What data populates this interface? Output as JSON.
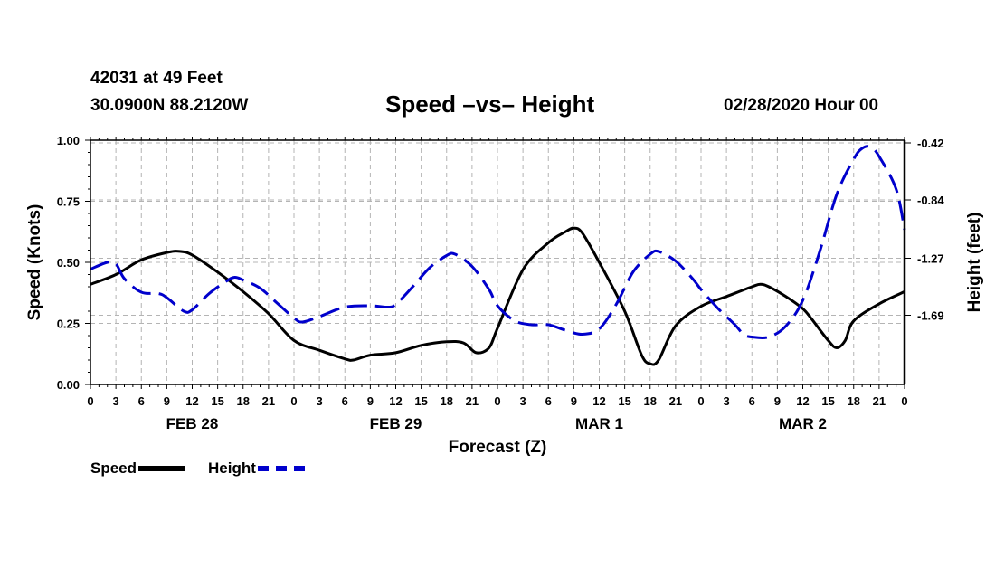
{
  "header": {
    "station": "42031 at 49 Feet",
    "coords": "30.0900N 88.2120W",
    "title": "Speed –vs– Height",
    "run": "02/28/2020 Hour 00"
  },
  "chart_data": {
    "type": "line",
    "title": "Speed –vs– Height",
    "xlabel": "Forecast (Z)",
    "ylabel_left": "Speed (Knots)",
    "ylabel_right": "Height (feet)",
    "x_unit": "forecast hour",
    "xlim": [
      0,
      96
    ],
    "ylim_left": [
      0,
      1.0
    ],
    "ylim_right": [
      -2.2,
      -0.4
    ],
    "yticks_left": [
      "0.00",
      "0.25",
      "0.50",
      "0.75",
      "1.00"
    ],
    "yticks_left_values": [
      0,
      0.25,
      0.5,
      0.75,
      1.0
    ],
    "yticks_right": [
      "-0.42",
      "-0.84",
      "-1.27",
      "-1.69"
    ],
    "yticks_right_values": [
      -0.42,
      -0.84,
      -1.27,
      -1.69
    ],
    "xtick_labels": [
      "0",
      "3",
      "6",
      "9",
      "12",
      "15",
      "18",
      "21",
      "0",
      "3",
      "6",
      "9",
      "12",
      "15",
      "18",
      "21",
      "0",
      "3",
      "6",
      "9",
      "12",
      "15",
      "18",
      "21",
      "0",
      "3",
      "6",
      "9",
      "12",
      "15",
      "18",
      "21",
      "0"
    ],
    "day_labels": [
      {
        "label": "FEB 28",
        "x": 12
      },
      {
        "label": "FEB 29",
        "x": 36
      },
      {
        "label": "MAR 1",
        "x": 60
      },
      {
        "label": "MAR 2",
        "x": 84
      }
    ],
    "grid": true,
    "legend_position": "bottom-left",
    "series": [
      {
        "name": "Speed",
        "axis": "left",
        "color": "#000000",
        "style": "solid",
        "points": [
          [
            0,
            0.41
          ],
          [
            3,
            0.45
          ],
          [
            6,
            0.51
          ],
          [
            9,
            0.54
          ],
          [
            10.5,
            0.545
          ],
          [
            12,
            0.53
          ],
          [
            15,
            0.46
          ],
          [
            18,
            0.38
          ],
          [
            21,
            0.29
          ],
          [
            24,
            0.18
          ],
          [
            27,
            0.14
          ],
          [
            30,
            0.105
          ],
          [
            31,
            0.1
          ],
          [
            33,
            0.12
          ],
          [
            36,
            0.13
          ],
          [
            39,
            0.16
          ],
          [
            42,
            0.175
          ],
          [
            44,
            0.17
          ],
          [
            45.5,
            0.13
          ],
          [
            47,
            0.15
          ],
          [
            48,
            0.23
          ],
          [
            51,
            0.47
          ],
          [
            54,
            0.58
          ],
          [
            56,
            0.625
          ],
          [
            57,
            0.64
          ],
          [
            58,
            0.62
          ],
          [
            60,
            0.5
          ],
          [
            63,
            0.3
          ],
          [
            65,
            0.12
          ],
          [
            66,
            0.085
          ],
          [
            67,
            0.1
          ],
          [
            69,
            0.24
          ],
          [
            72,
            0.32
          ],
          [
            75,
            0.36
          ],
          [
            78,
            0.4
          ],
          [
            79,
            0.41
          ],
          [
            80,
            0.4
          ],
          [
            82,
            0.36
          ],
          [
            84,
            0.31
          ],
          [
            85,
            0.27
          ],
          [
            87,
            0.18
          ],
          [
            88,
            0.15
          ],
          [
            89,
            0.18
          ],
          [
            90,
            0.26
          ],
          [
            93,
            0.33
          ],
          [
            96,
            0.38
          ]
        ]
      },
      {
        "name": "Height",
        "axis": "right",
        "color": "#0000cc",
        "style": "dashed",
        "points": [
          [
            0,
            -1.35
          ],
          [
            2,
            -1.3
          ],
          [
            3,
            -1.31
          ],
          [
            4,
            -1.42
          ],
          [
            6,
            -1.52
          ],
          [
            8,
            -1.53
          ],
          [
            9,
            -1.56
          ],
          [
            11,
            -1.66
          ],
          [
            12,
            -1.65
          ],
          [
            14,
            -1.53
          ],
          [
            16,
            -1.44
          ],
          [
            17,
            -1.41
          ],
          [
            18,
            -1.43
          ],
          [
            20,
            -1.49
          ],
          [
            22,
            -1.6
          ],
          [
            24,
            -1.71
          ],
          [
            25,
            -1.74
          ],
          [
            27,
            -1.7
          ],
          [
            30,
            -1.63
          ],
          [
            33,
            -1.62
          ],
          [
            35,
            -1.63
          ],
          [
            36,
            -1.61
          ],
          [
            38,
            -1.48
          ],
          [
            40,
            -1.34
          ],
          [
            42,
            -1.25
          ],
          [
            43,
            -1.24
          ],
          [
            45,
            -1.33
          ],
          [
            47,
            -1.5
          ],
          [
            48,
            -1.62
          ],
          [
            50,
            -1.73
          ],
          [
            52,
            -1.76
          ],
          [
            54,
            -1.76
          ],
          [
            56,
            -1.8
          ],
          [
            58,
            -1.83
          ],
          [
            60,
            -1.79
          ],
          [
            62,
            -1.61
          ],
          [
            64,
            -1.37
          ],
          [
            66,
            -1.24
          ],
          [
            67,
            -1.22
          ],
          [
            69,
            -1.29
          ],
          [
            71,
            -1.42
          ],
          [
            72,
            -1.5
          ],
          [
            74,
            -1.64
          ],
          [
            76,
            -1.76
          ],
          [
            77,
            -1.83
          ],
          [
            78,
            -1.85
          ],
          [
            80,
            -1.85
          ],
          [
            82,
            -1.77
          ],
          [
            84,
            -1.58
          ],
          [
            86,
            -1.22
          ],
          [
            88,
            -0.8
          ],
          [
            90,
            -0.54
          ],
          [
            91,
            -0.46
          ],
          [
            92,
            -0.45
          ],
          [
            93,
            -0.52
          ],
          [
            95,
            -0.76
          ],
          [
            96,
            -1.06
          ]
        ]
      }
    ]
  },
  "legend": {
    "speed_label": "Speed",
    "height_label": "Height"
  }
}
